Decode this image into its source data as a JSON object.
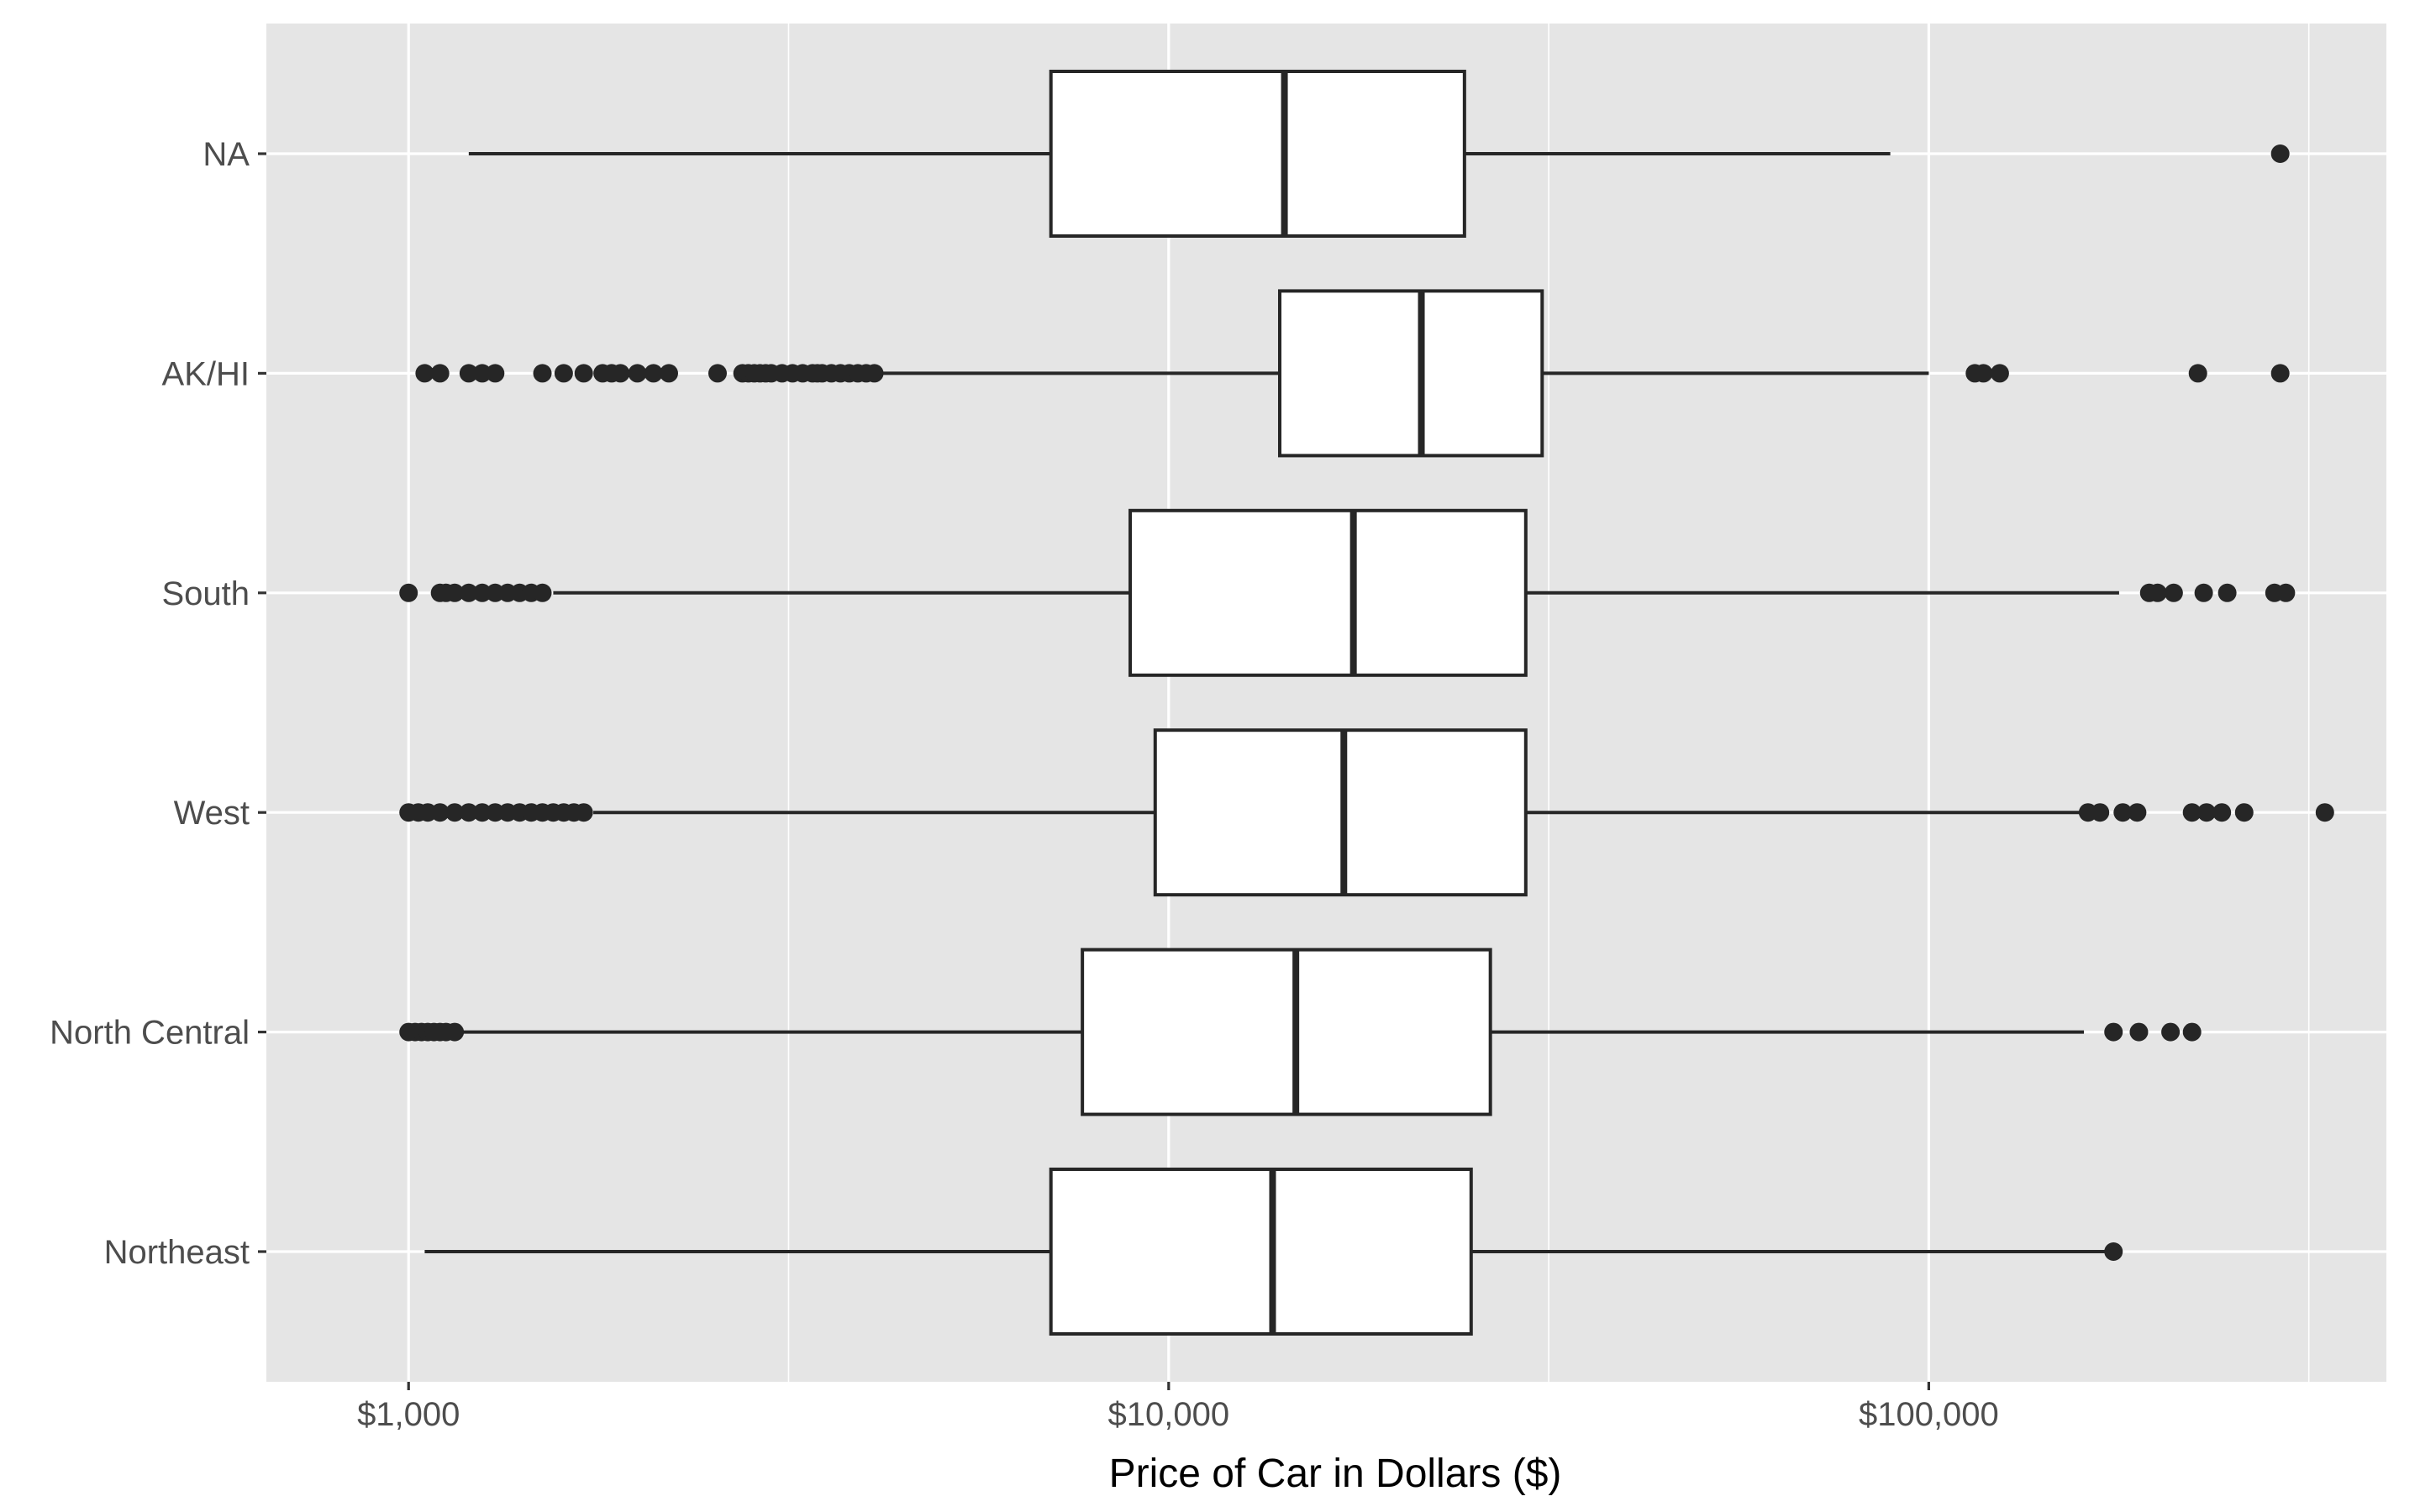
{
  "chart_data": {
    "type": "boxplot",
    "orientation": "horizontal",
    "title": "",
    "xlabel": "Price of Car in Dollars ($)",
    "ylabel": "",
    "x_scale": "log10",
    "xlim": [
      650,
      400000
    ],
    "x_ticks": [
      {
        "value": 1000,
        "label": "$1,000"
      },
      {
        "value": 10000,
        "label": "$10,000"
      },
      {
        "value": 100000,
        "label": "$100,000"
      }
    ],
    "x_minor_gridlines": [
      3162,
      31623,
      316228
    ],
    "grid": true,
    "legend": "none",
    "categories": [
      "NA",
      "AK/HI",
      "South",
      "West",
      "North Central",
      "Northeast"
    ],
    "boxes": [
      {
        "category": "NA",
        "whisker_low": 1200,
        "q1": 7000,
        "median": 14200,
        "q3": 24500,
        "whisker_high": 89000,
        "outliers": [
          290000
        ]
      },
      {
        "category": "AK/HI",
        "whisker_low": 4200,
        "q1": 14000,
        "median": 21500,
        "q3": 31000,
        "whisker_high": 100000,
        "outliers": [
          1050,
          1100,
          1200,
          1250,
          1300,
          1500,
          1600,
          1700,
          1800,
          1850,
          1900,
          2000,
          2100,
          2200,
          2550,
          2750,
          2800,
          2850,
          2900,
          2950,
          3000,
          3100,
          3200,
          3300,
          3400,
          3450,
          3500,
          3600,
          3700,
          3800,
          3900,
          4000,
          4100,
          115000,
          118000,
          124000,
          226000,
          290000
        ]
      },
      {
        "category": "South",
        "whisker_low": 1550,
        "q1": 8900,
        "median": 17500,
        "q3": 29500,
        "whisker_high": 178000,
        "outliers": [
          1000,
          1100,
          1120,
          1150,
          1200,
          1250,
          1300,
          1350,
          1400,
          1450,
          1500,
          195000,
          200000,
          210000,
          230000,
          247000,
          285000,
          295000
        ]
      },
      {
        "category": "West",
        "whisker_low": 1750,
        "q1": 9600,
        "median": 17000,
        "q3": 29500,
        "whisker_high": 160000,
        "outliers": [
          1000,
          1030,
          1060,
          1100,
          1150,
          1200,
          1250,
          1300,
          1350,
          1400,
          1450,
          1500,
          1550,
          1600,
          1650,
          1700,
          162000,
          168000,
          180000,
          188000,
          222000,
          232000,
          243000,
          260000,
          332000
        ]
      },
      {
        "category": "North Central",
        "whisker_low": 1150,
        "q1": 7700,
        "median": 14700,
        "q3": 26500,
        "whisker_high": 160000,
        "outliers": [
          1000,
          1020,
          1040,
          1060,
          1080,
          1100,
          1120,
          1150,
          175000,
          189000,
          208000,
          222000
        ]
      },
      {
        "category": "Northeast",
        "whisker_low": 1050,
        "q1": 7000,
        "median": 13700,
        "q3": 25000,
        "whisker_high": 175000,
        "outliers": [
          175000
        ]
      }
    ],
    "colors": {
      "panel_background": "#e5e5e5",
      "gridline": "#ffffff",
      "box_fill": "#ffffff",
      "box_stroke": "#262626",
      "outlier": "#262626",
      "tick_label": "#4d4d4d",
      "axis_title": "#000000"
    }
  }
}
